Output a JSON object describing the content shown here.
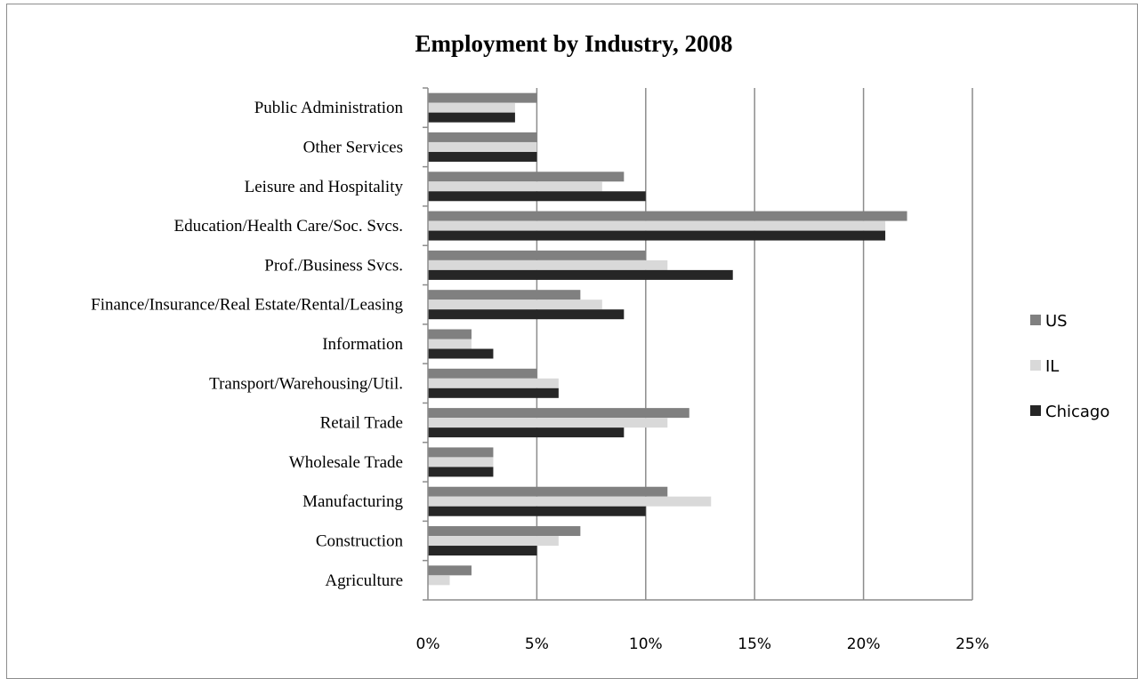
{
  "chart_data": {
    "type": "bar",
    "orientation": "horizontal",
    "title": "Employment by Industry, 2008",
    "categories": [
      "Public Administration",
      "Other Services",
      "Leisure and Hospitality",
      "Education/Health Care/Soc. Svcs.",
      "Prof./Business Svcs.",
      "Finance/Insurance/Real Estate/Rental/Leasing",
      "Information",
      "Transport/Warehousing/Util.",
      "Retail Trade",
      "Wholesale Trade",
      "Manufacturing",
      "Construction",
      "Agriculture"
    ],
    "series": [
      {
        "name": "US",
        "color": "#808080",
        "values": [
          5,
          5,
          9,
          22,
          10,
          7,
          2,
          5,
          12,
          3,
          11,
          7,
          2
        ]
      },
      {
        "name": "IL",
        "color": "#d9d9d9",
        "values": [
          4,
          5,
          8,
          21,
          11,
          8,
          2,
          6,
          11,
          3,
          13,
          6,
          1
        ]
      },
      {
        "name": "Chicago",
        "color": "#262626",
        "values": [
          4,
          5,
          10,
          21,
          14,
          9,
          3,
          6,
          9,
          3,
          10,
          5,
          0
        ]
      }
    ],
    "xlim": [
      0,
      25
    ],
    "x_ticks": [
      "0%",
      "5%",
      "10%",
      "15%",
      "20%",
      "25%"
    ],
    "x_tick_values": [
      0,
      5,
      10,
      15,
      20,
      25
    ],
    "grid": "vertical",
    "legend_position": "right"
  }
}
